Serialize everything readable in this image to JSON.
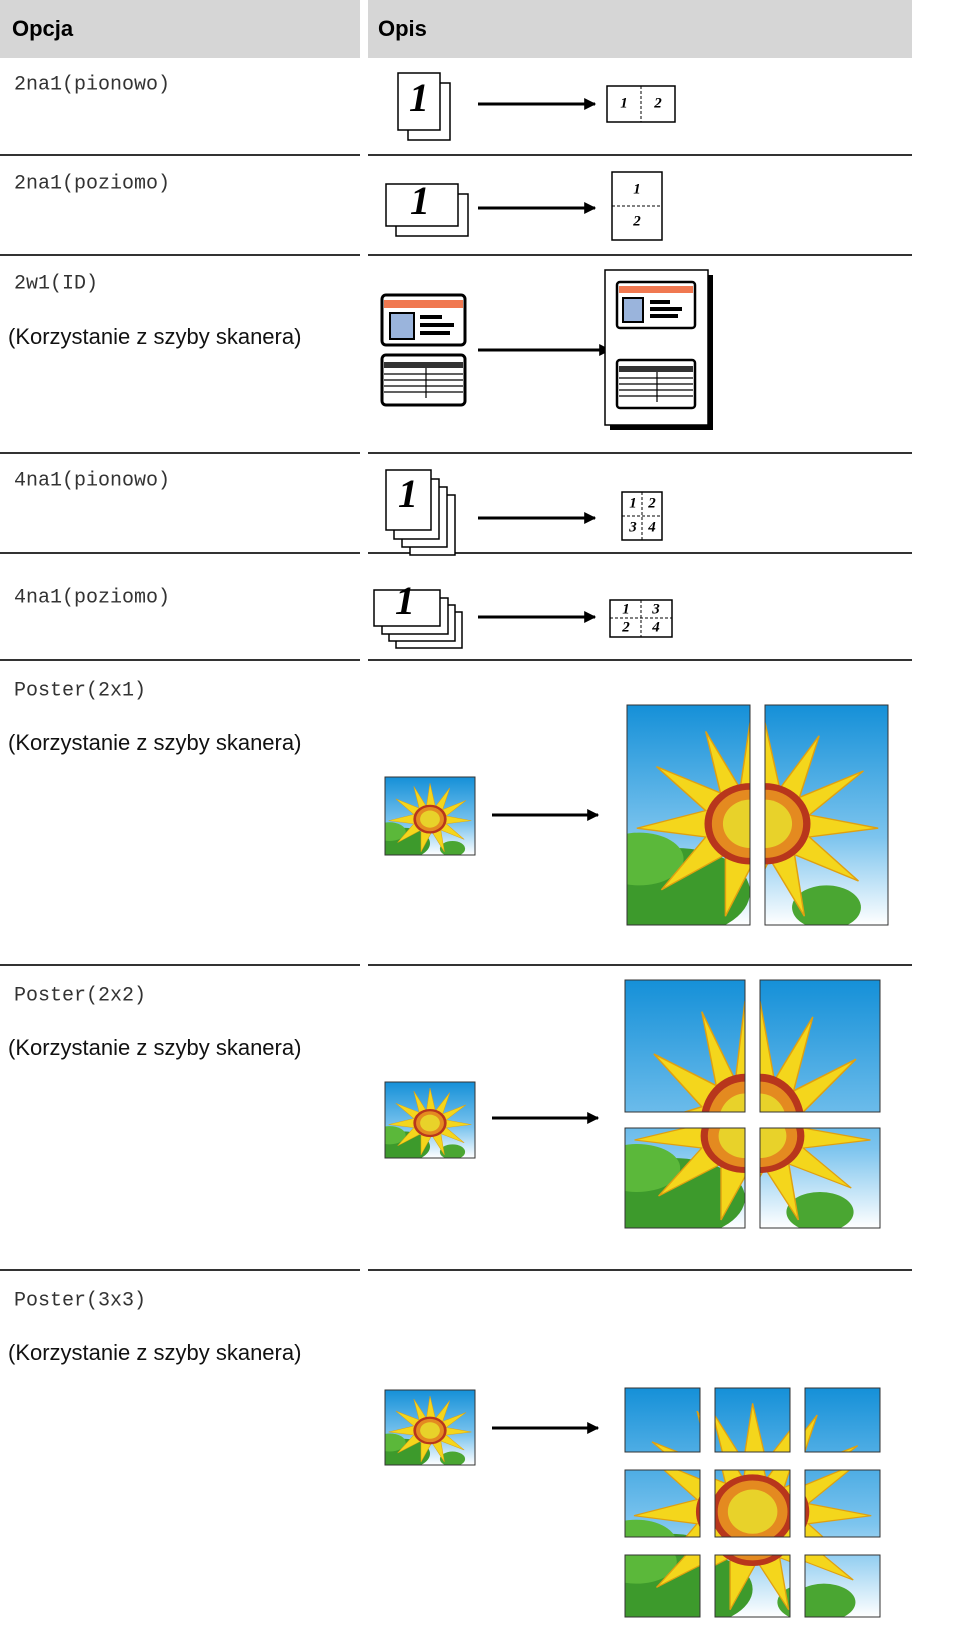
{
  "table": {
    "header": [
      "Opcja",
      "Opis"
    ],
    "rows": [
      {
        "option": "2na1(pionowo)",
        "figure": [
          "1",
          "1",
          "2"
        ]
      },
      {
        "option": "2na1(poziomo)",
        "figure": [
          "1",
          "1",
          "2"
        ]
      },
      {
        "option": "2w1(ID)",
        "note": "(Korzystanie z szyby skanera)"
      },
      {
        "option": "4na1(pionowo)",
        "figure": [
          "1",
          "1",
          "2",
          "3",
          "4"
        ]
      },
      {
        "option": "4na1(poziomo)",
        "figure": [
          "1",
          "1",
          "3",
          "2",
          "4"
        ]
      },
      {
        "option": "Poster(2x1)",
        "note": "(Korzystanie z szyby skanera)"
      },
      {
        "option": "Poster(2x2)",
        "note": "(Korzystanie z szyby skanera)"
      },
      {
        "option": "Poster(3x3)",
        "note": "(Korzystanie z szyby skanera)"
      }
    ]
  }
}
